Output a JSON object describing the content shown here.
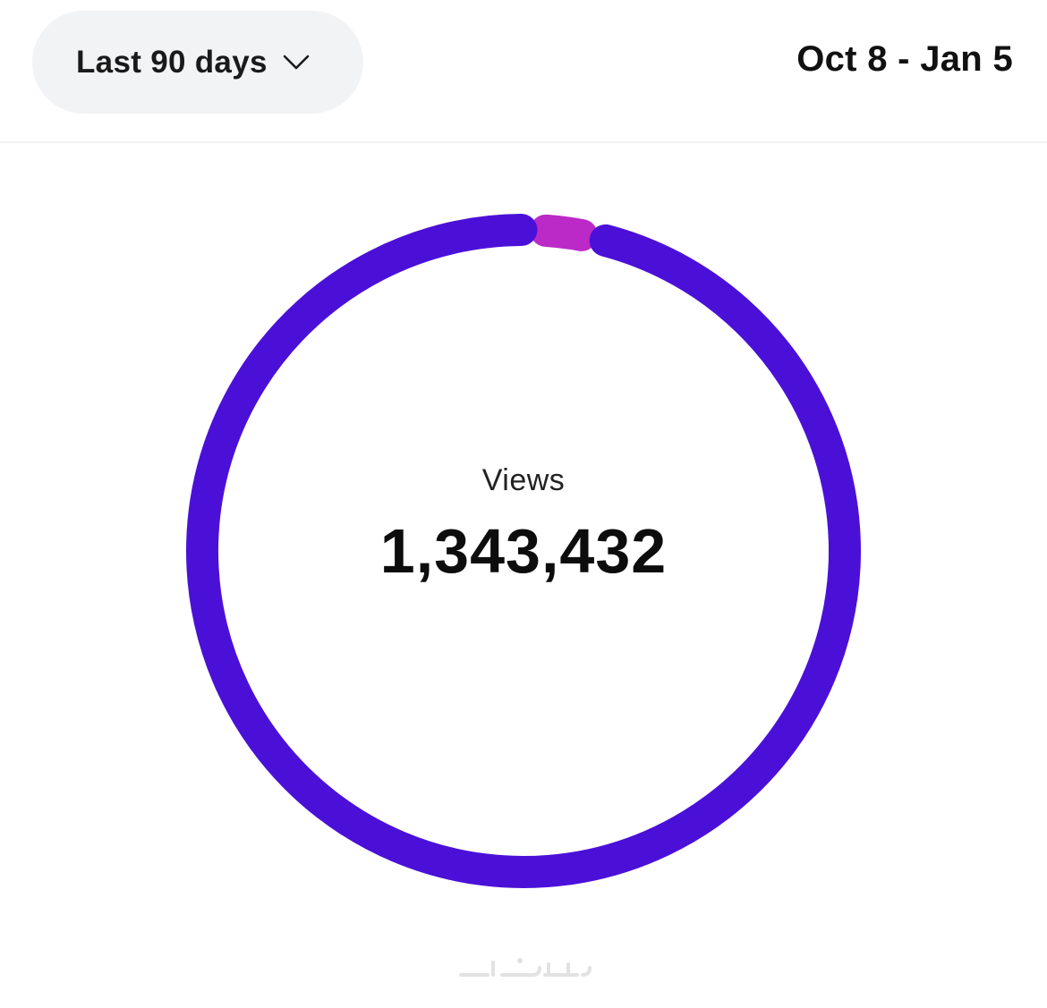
{
  "header": {
    "range_selector_label": "Last 90 days",
    "date_range": "Oct 8 - Jan 5"
  },
  "summary": {
    "metric_label": "Views",
    "metric_value": "1,343,432"
  },
  "chart_data": {
    "type": "pie",
    "style": "donut",
    "series": [
      {
        "color": "#4b10d8",
        "value": 0.97
      },
      {
        "color": "#bb2ac6",
        "value": 0.03
      }
    ],
    "center_label": "Views",
    "center_value": "1,343,432"
  },
  "watermark": {
    "text": "خمسات"
  },
  "colors": {
    "primary": "#4b10d8",
    "secondary": "#bb2ac6",
    "pill_background": "#f2f3f5"
  },
  "icons": {
    "range_chevron": "chevron-down-icon"
  }
}
